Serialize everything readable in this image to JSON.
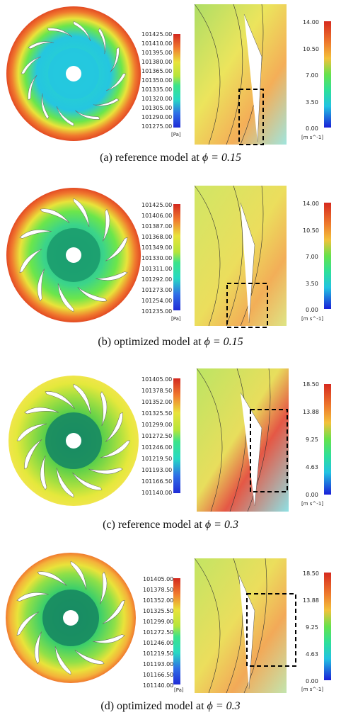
{
  "colors": {
    "pressure_scale": [
      "#1f2bd6",
      "#2f6ee6",
      "#25b6e8",
      "#27d9c4",
      "#3be38a",
      "#6ce64b",
      "#b6e43a",
      "#e9e33a",
      "#f4b23a",
      "#f07a2e",
      "#e34a23",
      "#d2281e"
    ],
    "velocity_scale": [
      "#1a1fd8",
      "#1f70ea",
      "#22c3e2",
      "#2ee09a",
      "#66e24c",
      "#c8e23a",
      "#f3c13a",
      "#ee7a2c",
      "#d62a1f"
    ]
  },
  "panels": [
    {
      "id": "a",
      "caption_text": "(a)  reference model at",
      "caption_phi": "ϕ = 0.15",
      "pressure_ticks": [
        "101425.00",
        "101410.00",
        "101395.00",
        "101380.00",
        "101365.00",
        "101350.00",
        "101335.00",
        "101320.00",
        "101305.00",
        "101290.00",
        "101275.00"
      ],
      "pressure_unit": "[Pa]",
      "velocity_ticks": [
        "14.00",
        "10.50",
        "7.00",
        "3.50",
        "0.00"
      ],
      "velocity_unit": "[m s^-1]"
    },
    {
      "id": "b",
      "caption_text": "(b)  optimized model at",
      "caption_phi": "ϕ = 0.15",
      "pressure_ticks": [
        "101425.00",
        "101406.00",
        "101387.00",
        "101368.00",
        "101349.00",
        "101330.00",
        "101311.00",
        "101292.00",
        "101273.00",
        "101254.00",
        "101235.00"
      ],
      "pressure_unit": "[Pa]",
      "velocity_ticks": [
        "14.00",
        "10.50",
        "7.00",
        "3.50",
        "0.00"
      ],
      "velocity_unit": "[m s^-1]"
    },
    {
      "id": "c",
      "caption_text": "(c)  reference model at",
      "caption_phi": "ϕ = 0.3",
      "pressure_ticks": [
        "101405.00",
        "101378.50",
        "101352.00",
        "101325.50",
        "101299.00",
        "101272.50",
        "101246.00",
        "101219.50",
        "101193.00",
        "101166.50",
        "101140.00"
      ],
      "pressure_unit": "[Pa]",
      "velocity_ticks": [
        "18.50",
        "13.88",
        "9.25",
        "4.63",
        "0.00"
      ],
      "velocity_unit": "[m s^-1]"
    },
    {
      "id": "d",
      "caption_text": "(d)  optimized model at",
      "caption_phi": "ϕ = 0.3",
      "pressure_ticks": [
        "101405.00",
        "101378.50",
        "101352.00",
        "101325.50",
        "101299.00",
        "101272.50",
        "101246.00",
        "101219.50",
        "101193.00",
        "101166.50",
        "101140.00"
      ],
      "pressure_unit": "[Pa]",
      "velocity_ticks": [
        "18.50",
        "13.88",
        "9.25",
        "4.63",
        "0.00"
      ],
      "velocity_unit": "[m s^-1]"
    }
  ]
}
